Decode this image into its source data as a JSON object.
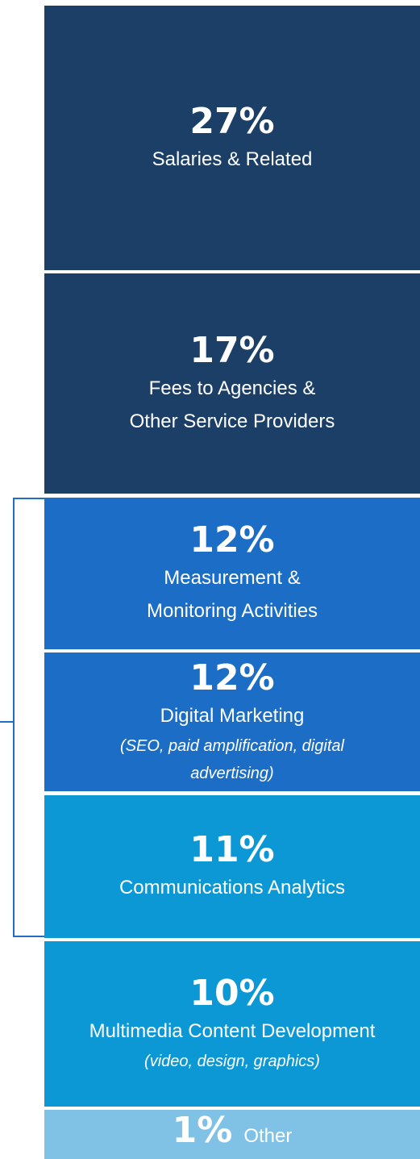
{
  "segments": [
    {
      "percent": "27%",
      "lines": [
        "Salaries & Related"
      ],
      "color": "#1c3f68"
    },
    {
      "percent": "17%",
      "lines": [
        "Fees to Agencies &",
        "Other Service Providers"
      ],
      "color": "#1c3f68"
    },
    {
      "percent": "12%",
      "lines": [
        "Measurement &",
        "Monitoring Activities"
      ],
      "color": "#1b6dc6"
    },
    {
      "percent": "12%",
      "lines": [
        "Digital Marketing"
      ],
      "notes": [
        "(SEO, paid amplification, digital",
        "advertising)"
      ],
      "color": "#1b6dc6"
    },
    {
      "percent": "11%",
      "lines": [
        "Communications Analytics"
      ],
      "color": "#0b98d5"
    },
    {
      "percent": "10%",
      "lines": [
        "Multimedia Content Development"
      ],
      "notes": [
        "(video, design, graphics)"
      ],
      "color": "#0b98d5"
    },
    {
      "percent": "1%",
      "lines": [
        "Other"
      ],
      "color": "#80c2e6"
    }
  ]
}
